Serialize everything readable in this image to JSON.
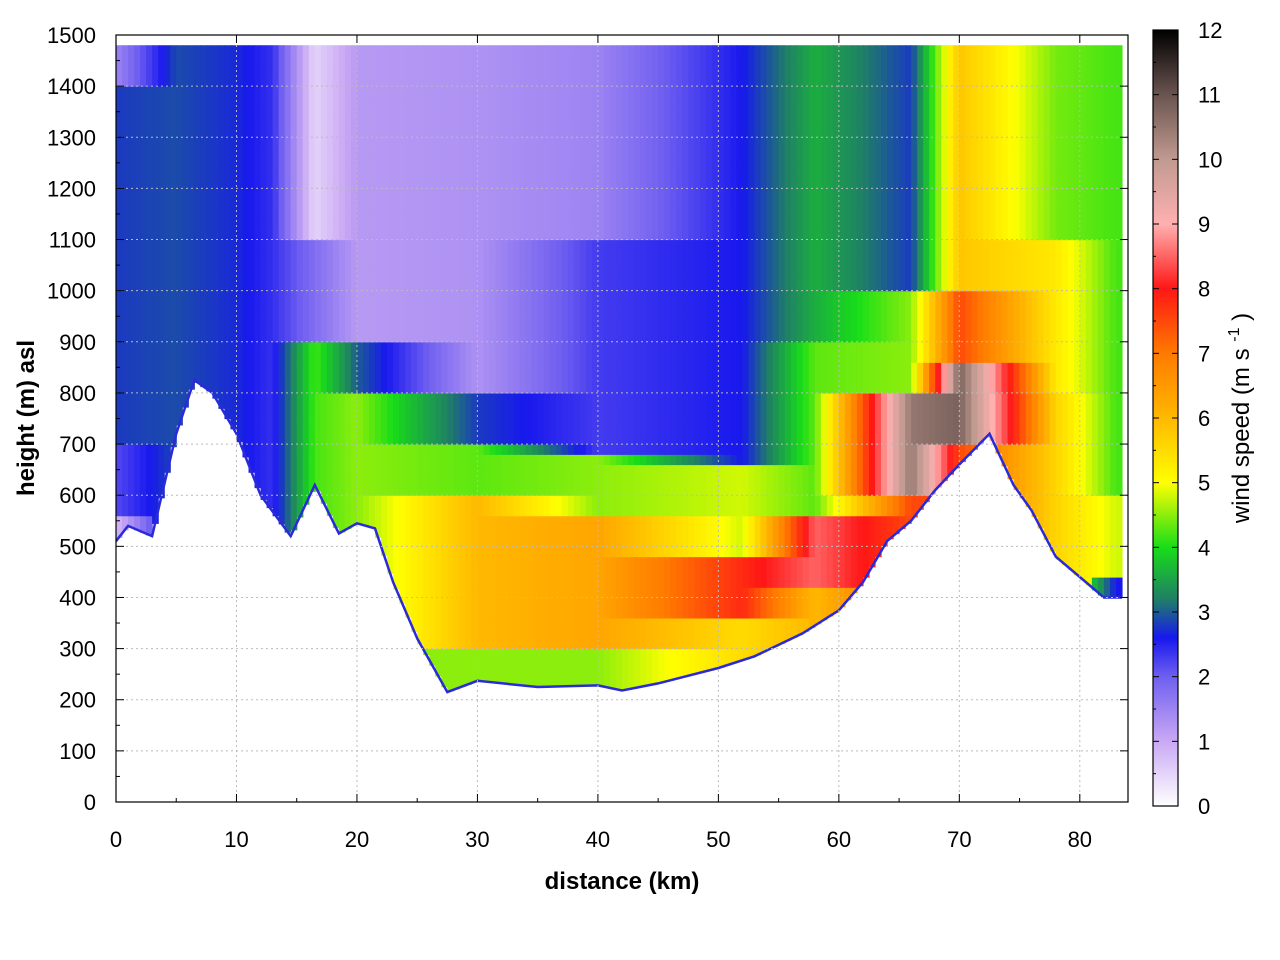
{
  "chart_data": {
    "type": "heatmap",
    "title": "",
    "xlabel": "distance (km)",
    "ylabel": "height (m) asl",
    "xlim": [
      0,
      84
    ],
    "ylim": [
      0,
      1500
    ],
    "xticks": [
      0,
      10,
      20,
      30,
      40,
      50,
      60,
      70,
      80
    ],
    "yticks": [
      0,
      100,
      200,
      300,
      400,
      500,
      600,
      700,
      800,
      900,
      1000,
      1100,
      1200,
      1300,
      1400,
      1500
    ],
    "colorbar": {
      "label": "wind speed (m s",
      "label_superscript": "-1",
      "label_close": ")",
      "range": [
        0,
        12
      ],
      "ticks": [
        0,
        1,
        2,
        3,
        4,
        5,
        6,
        7,
        8,
        9,
        10,
        11,
        12
      ],
      "colormap": [
        {
          "v": 0,
          "color": "#ffffff"
        },
        {
          "v": 1,
          "color": "#c9a8f4"
        },
        {
          "v": 2,
          "color": "#6f5ff0"
        },
        {
          "v": 2.6,
          "color": "#1818ee"
        },
        {
          "v": 3.2,
          "color": "#1f7f66"
        },
        {
          "v": 4,
          "color": "#18dd18"
        },
        {
          "v": 5,
          "color": "#ffff00"
        },
        {
          "v": 6,
          "color": "#ffb800"
        },
        {
          "v": 7,
          "color": "#ff7a00"
        },
        {
          "v": 8,
          "color": "#ff1616"
        },
        {
          "v": 9,
          "color": "#ffb0b0"
        },
        {
          "v": 10,
          "color": "#c09a90"
        },
        {
          "v": 11,
          "color": "#6a5450"
        },
        {
          "v": 12,
          "color": "#000000"
        }
      ]
    },
    "terrain": [
      {
        "x": 0,
        "y": 510
      },
      {
        "x": 1,
        "y": 540
      },
      {
        "x": 3,
        "y": 520
      },
      {
        "x": 5,
        "y": 720
      },
      {
        "x": 6.5,
        "y": 825
      },
      {
        "x": 8,
        "y": 800
      },
      {
        "x": 10,
        "y": 720
      },
      {
        "x": 12,
        "y": 600
      },
      {
        "x": 14.5,
        "y": 520
      },
      {
        "x": 16.5,
        "y": 620
      },
      {
        "x": 18.5,
        "y": 525
      },
      {
        "x": 20,
        "y": 545
      },
      {
        "x": 21.5,
        "y": 535
      },
      {
        "x": 23,
        "y": 430
      },
      {
        "x": 25,
        "y": 320
      },
      {
        "x": 27.5,
        "y": 215
      },
      {
        "x": 30,
        "y": 237
      },
      {
        "x": 35,
        "y": 225
      },
      {
        "x": 40,
        "y": 228
      },
      {
        "x": 42,
        "y": 218
      },
      {
        "x": 45,
        "y": 232
      },
      {
        "x": 50,
        "y": 262
      },
      {
        "x": 53,
        "y": 285
      },
      {
        "x": 57,
        "y": 330
      },
      {
        "x": 60,
        "y": 375
      },
      {
        "x": 62,
        "y": 430
      },
      {
        "x": 64,
        "y": 510
      },
      {
        "x": 66,
        "y": 550
      },
      {
        "x": 68,
        "y": 610
      },
      {
        "x": 70,
        "y": 660
      },
      {
        "x": 72.5,
        "y": 720
      },
      {
        "x": 74.5,
        "y": 620
      },
      {
        "x": 76,
        "y": 570
      },
      {
        "x": 78,
        "y": 480
      },
      {
        "x": 80,
        "y": 440
      },
      {
        "x": 82,
        "y": 400
      },
      {
        "x": 83.5,
        "y": 400
      }
    ],
    "wind_field": [
      {
        "x": 0,
        "bands": [
          [
            510,
            550,
            0.8
          ],
          [
            550,
            700,
            2.2
          ],
          [
            700,
            1400,
            2.8
          ],
          [
            1400,
            1460,
            1.5
          ]
        ]
      },
      {
        "x": 5,
        "bands": [
          [
            760,
            1450,
            2.9
          ]
        ]
      },
      {
        "x": 10,
        "bands": [
          [
            740,
            1450,
            2.7
          ]
        ]
      },
      {
        "x": 13,
        "bands": [
          [
            560,
            1450,
            2.4
          ]
        ]
      },
      {
        "x": 16.5,
        "bands": [
          [
            620,
            900,
            4.2
          ],
          [
            900,
            1100,
            1.8
          ],
          [
            1100,
            1450,
            0.5
          ]
        ]
      },
      {
        "x": 20,
        "bands": [
          [
            545,
            800,
            4.5
          ],
          [
            800,
            900,
            3
          ],
          [
            900,
            1450,
            1.2
          ]
        ]
      },
      {
        "x": 30,
        "bands": [
          [
            237,
            300,
            4.5
          ],
          [
            300,
            600,
            6
          ],
          [
            600,
            700,
            4.3
          ],
          [
            700,
            800,
            2.8
          ],
          [
            800,
            1450,
            1.3
          ]
        ]
      },
      {
        "x": 40,
        "bands": [
          [
            228,
            300,
            4.5
          ],
          [
            300,
            550,
            6.3
          ],
          [
            550,
            680,
            4.5
          ],
          [
            680,
            1100,
            2.3
          ],
          [
            1100,
            1450,
            1.5
          ]
        ]
      },
      {
        "x": 52,
        "bands": [
          [
            280,
            350,
            5.5
          ],
          [
            350,
            480,
            7.8
          ],
          [
            480,
            650,
            4.8
          ],
          [
            650,
            1450,
            2.6
          ]
        ]
      },
      {
        "x": 58,
        "bands": [
          [
            345,
            420,
            6
          ],
          [
            420,
            560,
            8.5
          ],
          [
            560,
            900,
            4.3
          ],
          [
            900,
            1450,
            3.6
          ]
        ]
      },
      {
        "x": 66,
        "bands": [
          [
            550,
            600,
            7.5
          ],
          [
            600,
            800,
            10.5
          ],
          [
            800,
            1000,
            4.5
          ],
          [
            1000,
            1450,
            2.8
          ]
        ]
      },
      {
        "x": 70,
        "bands": [
          [
            660,
            700,
            7.5
          ],
          [
            700,
            850,
            10.8
          ],
          [
            850,
            1000,
            7.5
          ],
          [
            1000,
            1450,
            5.8
          ]
        ]
      },
      {
        "x": 78,
        "bands": [
          [
            480,
            800,
            5.6
          ],
          [
            800,
            1100,
            5.3
          ],
          [
            1100,
            1450,
            4.4
          ]
        ]
      },
      {
        "x": 83,
        "bands": [
          [
            400,
            430,
            2.6
          ],
          [
            430,
            600,
            4.8
          ],
          [
            600,
            1450,
            4.2
          ]
        ]
      }
    ]
  }
}
